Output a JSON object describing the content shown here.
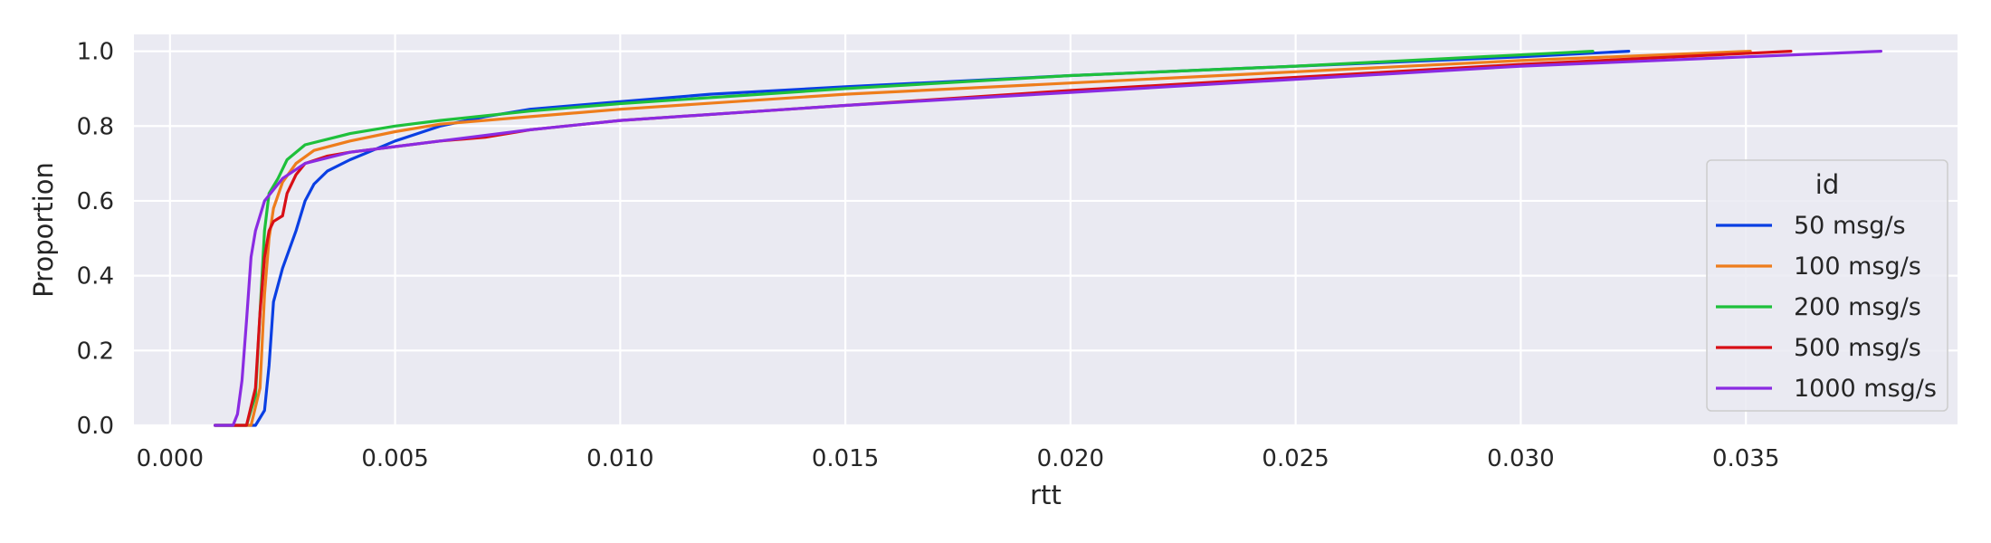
{
  "chart_data": {
    "type": "line",
    "kind": "ecdf",
    "title": "",
    "xlabel": "rtt",
    "ylabel": "Proportion",
    "xlim": [
      -0.0008,
      0.0397
    ],
    "ylim": [
      0.0,
      1.045
    ],
    "x_ticks": [
      0.0,
      0.005,
      0.01,
      0.015,
      0.02,
      0.025,
      0.03,
      0.035
    ],
    "x_tick_labels": [
      "0.000",
      "0.005",
      "0.010",
      "0.015",
      "0.020",
      "0.025",
      "0.030",
      "0.035"
    ],
    "y_ticks": [
      0.0,
      0.2,
      0.4,
      0.6,
      0.8,
      1.0
    ],
    "y_tick_labels": [
      "0.0",
      "0.2",
      "0.4",
      "0.6",
      "0.8",
      "1.0"
    ],
    "grid": true,
    "background": "#eaeaf2",
    "legend": {
      "title": "id",
      "placement": "center-right"
    },
    "series": [
      {
        "name": "50 msg/s",
        "color": "#0a3fe3",
        "points": [
          [
            0.001,
            0.0
          ],
          [
            0.0019,
            0.0
          ],
          [
            0.0021,
            0.04
          ],
          [
            0.0022,
            0.16
          ],
          [
            0.0023,
            0.33
          ],
          [
            0.0025,
            0.42
          ],
          [
            0.0028,
            0.52
          ],
          [
            0.003,
            0.6
          ],
          [
            0.0032,
            0.645
          ],
          [
            0.0035,
            0.68
          ],
          [
            0.004,
            0.71
          ],
          [
            0.0045,
            0.735
          ],
          [
            0.005,
            0.76
          ],
          [
            0.0055,
            0.78
          ],
          [
            0.006,
            0.8
          ],
          [
            0.007,
            0.825
          ],
          [
            0.008,
            0.845
          ],
          [
            0.009,
            0.855
          ],
          [
            0.01,
            0.865
          ],
          [
            0.012,
            0.885
          ],
          [
            0.015,
            0.905
          ],
          [
            0.02,
            0.935
          ],
          [
            0.025,
            0.96
          ],
          [
            0.03,
            0.985
          ],
          [
            0.0324,
            1.0
          ]
        ]
      },
      {
        "name": "100 msg/s",
        "color": "#ee7d1c",
        "points": [
          [
            0.001,
            0.0
          ],
          [
            0.0018,
            0.0
          ],
          [
            0.002,
            0.1
          ],
          [
            0.0021,
            0.35
          ],
          [
            0.0022,
            0.5
          ],
          [
            0.0023,
            0.58
          ],
          [
            0.0025,
            0.65
          ],
          [
            0.0028,
            0.7
          ],
          [
            0.0032,
            0.735
          ],
          [
            0.004,
            0.76
          ],
          [
            0.005,
            0.785
          ],
          [
            0.006,
            0.805
          ],
          [
            0.008,
            0.825
          ],
          [
            0.01,
            0.845
          ],
          [
            0.015,
            0.885
          ],
          [
            0.02,
            0.915
          ],
          [
            0.025,
            0.945
          ],
          [
            0.03,
            0.975
          ],
          [
            0.0351,
            1.0
          ]
        ]
      },
      {
        "name": "200 msg/s",
        "color": "#1ec03b",
        "points": [
          [
            0.001,
            0.0
          ],
          [
            0.0017,
            0.0
          ],
          [
            0.0019,
            0.08
          ],
          [
            0.002,
            0.3
          ],
          [
            0.0021,
            0.52
          ],
          [
            0.0022,
            0.62
          ],
          [
            0.0024,
            0.66
          ],
          [
            0.0026,
            0.71
          ],
          [
            0.003,
            0.75
          ],
          [
            0.004,
            0.78
          ],
          [
            0.005,
            0.8
          ],
          [
            0.006,
            0.815
          ],
          [
            0.008,
            0.84
          ],
          [
            0.01,
            0.86
          ],
          [
            0.015,
            0.9
          ],
          [
            0.02,
            0.935
          ],
          [
            0.025,
            0.96
          ],
          [
            0.0316,
            1.0
          ]
        ]
      },
      {
        "name": "500 msg/s",
        "color": "#d80f16",
        "points": [
          [
            0.001,
            0.0
          ],
          [
            0.0017,
            0.0
          ],
          [
            0.0019,
            0.1
          ],
          [
            0.002,
            0.3
          ],
          [
            0.0021,
            0.45
          ],
          [
            0.0022,
            0.52
          ],
          [
            0.0023,
            0.545
          ],
          [
            0.0025,
            0.56
          ],
          [
            0.0026,
            0.62
          ],
          [
            0.0028,
            0.67
          ],
          [
            0.003,
            0.7
          ],
          [
            0.0035,
            0.72
          ],
          [
            0.004,
            0.73
          ],
          [
            0.005,
            0.745
          ],
          [
            0.006,
            0.76
          ],
          [
            0.007,
            0.77
          ],
          [
            0.008,
            0.79
          ],
          [
            0.01,
            0.815
          ],
          [
            0.015,
            0.855
          ],
          [
            0.02,
            0.895
          ],
          [
            0.025,
            0.93
          ],
          [
            0.03,
            0.965
          ],
          [
            0.036,
            1.0
          ]
        ]
      },
      {
        "name": "1000 msg/s",
        "color": "#8a2be2",
        "points": [
          [
            0.001,
            0.0
          ],
          [
            0.0014,
            0.0
          ],
          [
            0.0015,
            0.03
          ],
          [
            0.0016,
            0.12
          ],
          [
            0.0017,
            0.28
          ],
          [
            0.0018,
            0.45
          ],
          [
            0.0019,
            0.52
          ],
          [
            0.002,
            0.56
          ],
          [
            0.0021,
            0.6
          ],
          [
            0.0023,
            0.63
          ],
          [
            0.0025,
            0.66
          ],
          [
            0.003,
            0.7
          ],
          [
            0.004,
            0.73
          ],
          [
            0.005,
            0.745
          ],
          [
            0.006,
            0.76
          ],
          [
            0.008,
            0.79
          ],
          [
            0.01,
            0.815
          ],
          [
            0.015,
            0.855
          ],
          [
            0.02,
            0.89
          ],
          [
            0.025,
            0.925
          ],
          [
            0.03,
            0.96
          ],
          [
            0.035,
            0.985
          ],
          [
            0.038,
            1.0
          ]
        ]
      }
    ]
  }
}
